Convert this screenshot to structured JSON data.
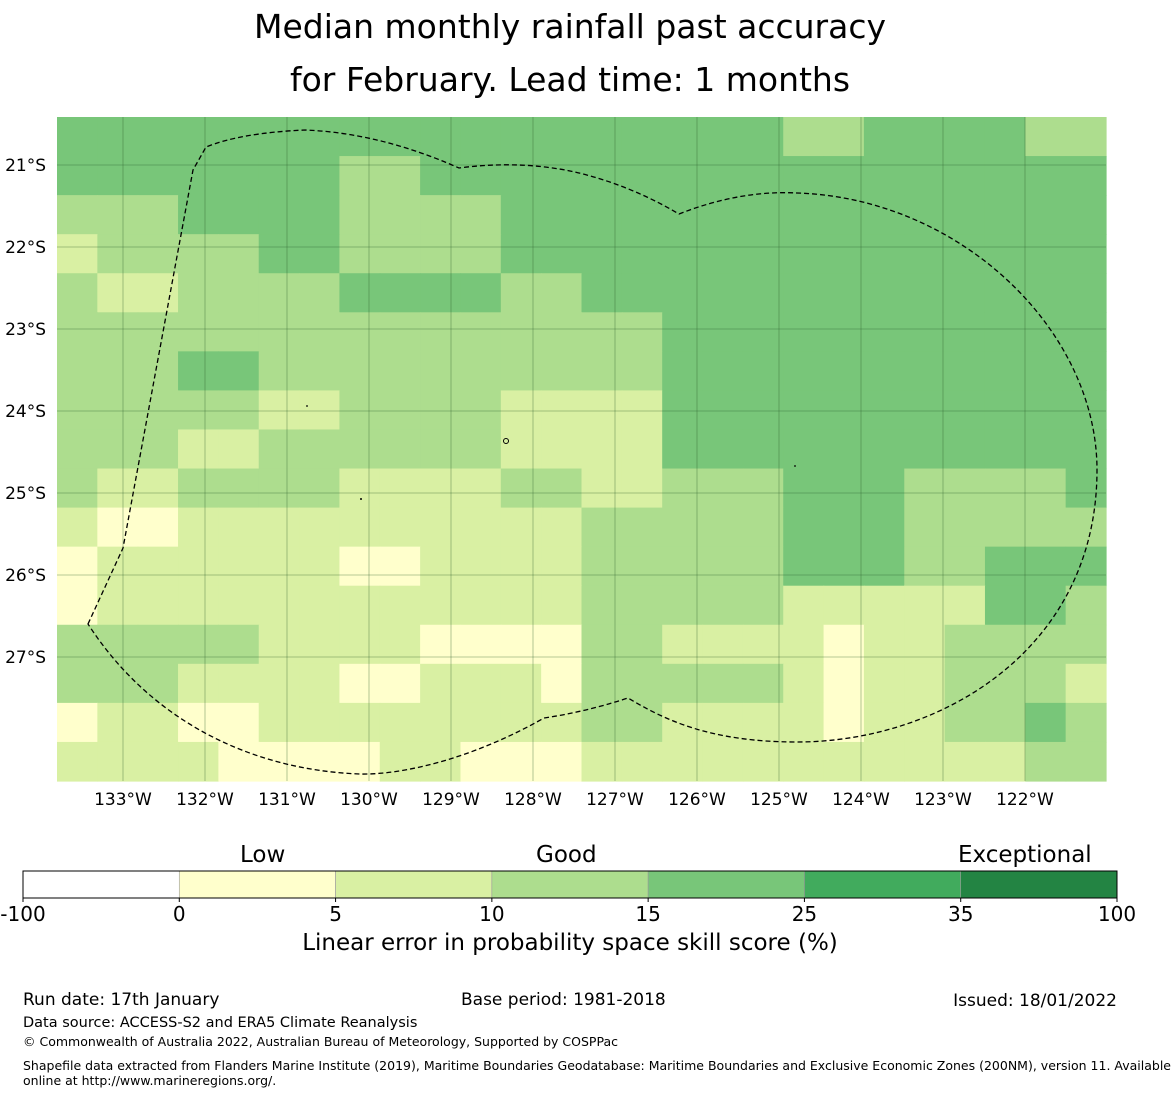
{
  "title": {
    "line1": "Median monthly rainfall past accuracy",
    "line2": "for February. Lead time: 1 months"
  },
  "map": {
    "x_ticks": [
      "133°W",
      "132°W",
      "131°W",
      "130°W",
      "129°W",
      "128°W",
      "127°W",
      "126°W",
      "125°W",
      "124°W",
      "123°W",
      "122°W"
    ],
    "y_ticks": [
      "21°S",
      "22°S",
      "23°S",
      "24°S",
      "25°S",
      "26°S",
      "27°S"
    ],
    "cell_colors": [
      "#ffffff",
      "#ffffcc",
      "#d9f0a3",
      "#addd8e",
      "#78c679",
      "#41ab5d",
      "#238443"
    ],
    "grid": [
      [
        4,
        4,
        4,
        4,
        4,
        4,
        4,
        4,
        4,
        4,
        4,
        4,
        4,
        4,
        4,
        4,
        4,
        4,
        3,
        3,
        4,
        4,
        4,
        4,
        3,
        3
      ],
      [
        4,
        4,
        4,
        4,
        4,
        4,
        4,
        3,
        3,
        4,
        4,
        4,
        4,
        4,
        4,
        4,
        4,
        4,
        4,
        4,
        4,
        4,
        4,
        4,
        4,
        4
      ],
      [
        3,
        3,
        3,
        4,
        4,
        4,
        4,
        3,
        3,
        3,
        3,
        4,
        4,
        4,
        4,
        4,
        4,
        4,
        4,
        4,
        4,
        4,
        4,
        4,
        4,
        4
      ],
      [
        2,
        3,
        3,
        3,
        3,
        4,
        4,
        3,
        3,
        3,
        3,
        4,
        4,
        4,
        4,
        4,
        4,
        4,
        4,
        4,
        4,
        4,
        4,
        4,
        4,
        4
      ],
      [
        3,
        2,
        2,
        3,
        3,
        3,
        3,
        4,
        4,
        4,
        4,
        3,
        3,
        4,
        4,
        4,
        4,
        4,
        4,
        4,
        4,
        4,
        4,
        4,
        4,
        4
      ],
      [
        3,
        3,
        3,
        3,
        3,
        3,
        3,
        3,
        3,
        3,
        3,
        3,
        3,
        3,
        3,
        4,
        4,
        4,
        4,
        4,
        4,
        4,
        4,
        4,
        4,
        4
      ],
      [
        3,
        3,
        3,
        4,
        4,
        3,
        3,
        3,
        3,
        3,
        3,
        3,
        3,
        3,
        3,
        4,
        4,
        4,
        4,
        4,
        4,
        4,
        4,
        4,
        4,
        4
      ],
      [
        3,
        3,
        3,
        3,
        3,
        2,
        2,
        3,
        3,
        3,
        3,
        2,
        2,
        2,
        2,
        4,
        4,
        4,
        4,
        4,
        4,
        4,
        4,
        4,
        4,
        4
      ],
      [
        3,
        3,
        3,
        2,
        2,
        3,
        3,
        3,
        3,
        3,
        3,
        2,
        2,
        2,
        2,
        4,
        4,
        4,
        4,
        4,
        4,
        4,
        4,
        4,
        4,
        4
      ],
      [
        3,
        2,
        2,
        3,
        3,
        3,
        3,
        2,
        2,
        2,
        2,
        3,
        3,
        2,
        2,
        3,
        3,
        3,
        4,
        4,
        4,
        3,
        3,
        3,
        3,
        4
      ],
      [
        2,
        1,
        1,
        2,
        2,
        2,
        2,
        2,
        2,
        2,
        2,
        2,
        2,
        3,
        3,
        3,
        3,
        3,
        4,
        4,
        4,
        3,
        3,
        3,
        3,
        3
      ],
      [
        1,
        2,
        2,
        2,
        2,
        2,
        2,
        1,
        1,
        2,
        2,
        2,
        2,
        3,
        3,
        3,
        3,
        3,
        4,
        4,
        4,
        3,
        3,
        4,
        4,
        4
      ],
      [
        1,
        2,
        2,
        2,
        2,
        2,
        2,
        2,
        2,
        2,
        2,
        2,
        2,
        3,
        3,
        3,
        3,
        3,
        2,
        2,
        2,
        2,
        2,
        4,
        4,
        3
      ],
      [
        3,
        3,
        3,
        3,
        3,
        2,
        2,
        2,
        2,
        1,
        1,
        1,
        1,
        3,
        3,
        2,
        2,
        2,
        2,
        1,
        2,
        2,
        3,
        3,
        3,
        3
      ],
      [
        3,
        3,
        3,
        2,
        2,
        2,
        2,
        1,
        1,
        2,
        2,
        2,
        1,
        3,
        3,
        3,
        3,
        3,
        2,
        1,
        2,
        2,
        3,
        3,
        3,
        2
      ],
      [
        1,
        2,
        2,
        1,
        1,
        2,
        2,
        2,
        2,
        2,
        2,
        2,
        2,
        3,
        3,
        2,
        2,
        2,
        2,
        1,
        2,
        2,
        3,
        3,
        4,
        3
      ],
      [
        2,
        2,
        2,
        2,
        1,
        1,
        1,
        1,
        2,
        2,
        1,
        1,
        1,
        2,
        2,
        2,
        2,
        2,
        2,
        2,
        2,
        2,
        2,
        2,
        3,
        3
      ]
    ]
  },
  "colorbar": {
    "label_low": "Low",
    "label_good": "Good",
    "label_exceptional": "Exceptional",
    "bin_edges": [
      "-100",
      "0",
      "5",
      "10",
      "15",
      "25",
      "35",
      "100"
    ],
    "bin_colors": [
      "#ffffff",
      "#ffffcc",
      "#d9f0a3",
      "#addd8e",
      "#78c679",
      "#41ab5d",
      "#238443"
    ],
    "axis_label": "Linear error in probability space skill score (%)"
  },
  "footer": {
    "run_date": "Run date: 17th January",
    "base_period": "Base period: 1981-2018",
    "issued": "Issued: 18/01/2022",
    "data_source": "Data source: ACCESS-S2 and ERA5 Climate Reanalysis",
    "copyright": "© Commonwealth of Australia 2022, Australian Bureau of Meteorology, Supported by COSPPac",
    "shapefile_line1": "Shapefile data extracted from Flanders Marine Institute (2019), Maritime Boundaries Geodatabase: Maritime Boundaries and Exclusive Economic Zones (200NM), version 11. Available",
    "shapefile_line2": "online at http://www.marineregions.org/."
  }
}
